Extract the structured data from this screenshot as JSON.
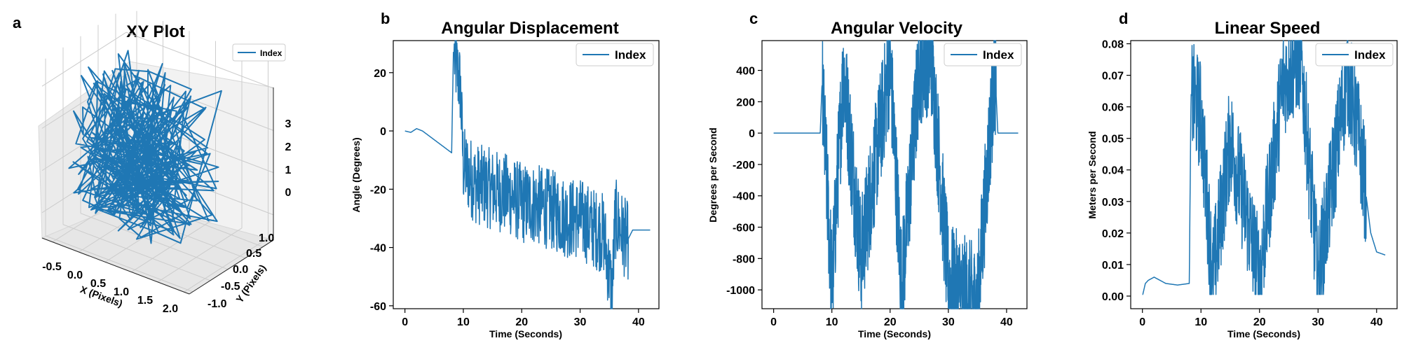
{
  "colors": {
    "series": "#1f77b4",
    "axis": "#000000",
    "grid": "#cccccc",
    "pane": "#f2f2f2",
    "legend_border": "#cccccc"
  },
  "chart_data": [
    {
      "panel": "a",
      "type": "line",
      "projection": "3d",
      "title": "XY Plot",
      "xlabel": "X (Pixels)",
      "ylabel": "Y (Pixels)",
      "zlabel": "",
      "xticks": [
        "-0.5",
        "0.0",
        "0.5",
        "1.0",
        "1.5",
        "2.0"
      ],
      "yticks": [
        "-1.0",
        "-0.5",
        "0.0",
        "0.5",
        "1.0"
      ],
      "zticks": [
        "0",
        "1",
        "2",
        "3"
      ],
      "xlim": [
        -0.7,
        2.1
      ],
      "ylim": [
        -1.1,
        1.3
      ],
      "zlim": [
        -0.6,
        3.6
      ],
      "grid": true,
      "legend": "top-right",
      "series": [
        {
          "name": "Index",
          "color": "#1f77b4"
        }
      ]
    },
    {
      "panel": "b",
      "type": "line",
      "title": "Angular Displacement",
      "xlabel": "Time (Seconds)",
      "ylabel": "Angle (Degrees)",
      "xlim": [
        -2,
        43.5
      ],
      "ylim": [
        -61,
        31
      ],
      "xticks": [
        0,
        10,
        20,
        30,
        40
      ],
      "yticks": [
        -60,
        -40,
        -20,
        0,
        20
      ],
      "grid": false,
      "legend": "top-right",
      "series": [
        {
          "name": "Index",
          "color": "#1f77b4"
        }
      ],
      "keypoints": [
        [
          0,
          0
        ],
        [
          1,
          -0.5
        ],
        [
          2,
          0.8
        ],
        [
          3,
          0
        ],
        [
          4,
          -1.5
        ],
        [
          5,
          -3
        ],
        [
          6,
          -4.5
        ],
        [
          7,
          -6
        ],
        [
          8,
          -7.5
        ],
        [
          8.3,
          27
        ],
        [
          9.5,
          15
        ],
        [
          10,
          -12
        ],
        [
          12,
          -18
        ],
        [
          15,
          -20
        ],
        [
          18,
          -22
        ],
        [
          20,
          -25
        ],
        [
          22,
          -25
        ],
        [
          25,
          -27
        ],
        [
          28,
          -30
        ],
        [
          30,
          -30
        ],
        [
          32,
          -33
        ],
        [
          34,
          -35
        ],
        [
          35.5,
          -56
        ],
        [
          36,
          -30
        ],
        [
          38,
          -38
        ],
        [
          39,
          -34
        ],
        [
          42,
          -34
        ]
      ]
    },
    {
      "panel": "c",
      "type": "line",
      "title": "Angular Velocity",
      "xlabel": "Time (Seconds)",
      "ylabel": "Degrees per Second",
      "xlim": [
        -2,
        43.5
      ],
      "ylim": [
        -1120,
        590
      ],
      "xticks": [
        0,
        10,
        20,
        30,
        40
      ],
      "yticks": [
        -1000,
        -800,
        -600,
        -400,
        -200,
        0,
        200,
        400
      ],
      "grid": false,
      "legend": "top-right",
      "series": [
        {
          "name": "Index",
          "color": "#1f77b4"
        }
      ],
      "keypoints": [
        [
          0,
          0
        ],
        [
          8,
          0
        ],
        [
          8.3,
          310
        ],
        [
          10,
          -980
        ],
        [
          12,
          400
        ],
        [
          15,
          -800
        ],
        [
          20,
          450
        ],
        [
          22,
          -990
        ],
        [
          25,
          420
        ],
        [
          27,
          510
        ],
        [
          30,
          -950
        ],
        [
          35,
          -1090
        ],
        [
          38,
          420
        ],
        [
          38.5,
          0
        ],
        [
          42,
          0
        ]
      ]
    },
    {
      "panel": "d",
      "type": "line",
      "title": "Linear Speed",
      "xlabel": "Time (Seconds)",
      "ylabel": "Meters per Second",
      "xlim": [
        -2,
        43.5
      ],
      "ylim": [
        -0.004,
        0.081
      ],
      "xticks": [
        0,
        10,
        20,
        30,
        40
      ],
      "yticks": [
        0.0,
        0.01,
        0.02,
        0.03,
        0.04,
        0.05,
        0.06,
        0.07,
        0.08
      ],
      "ytick_labels": [
        "0.00",
        "0.01",
        "0.02",
        "0.03",
        "0.04",
        "0.05",
        "0.06",
        "0.07",
        "0.08"
      ],
      "grid": false,
      "legend": "top-right",
      "series": [
        {
          "name": "Index",
          "color": "#1f77b4"
        }
      ],
      "keypoints": [
        [
          0,
          0.0
        ],
        [
          0.5,
          0.004
        ],
        [
          1,
          0.005
        ],
        [
          2,
          0.006
        ],
        [
          4,
          0.004
        ],
        [
          6,
          0.0035
        ],
        [
          8,
          0.004
        ],
        [
          8.3,
          0.064
        ],
        [
          10,
          0.057
        ],
        [
          12,
          0.005
        ],
        [
          15,
          0.05
        ],
        [
          20,
          0.006
        ],
        [
          24,
          0.068
        ],
        [
          27,
          0.077
        ],
        [
          30,
          0.005
        ],
        [
          35,
          0.071
        ],
        [
          37,
          0.05
        ],
        [
          39,
          0.02
        ],
        [
          40,
          0.014
        ],
        [
          41.5,
          0.013
        ]
      ]
    }
  ]
}
